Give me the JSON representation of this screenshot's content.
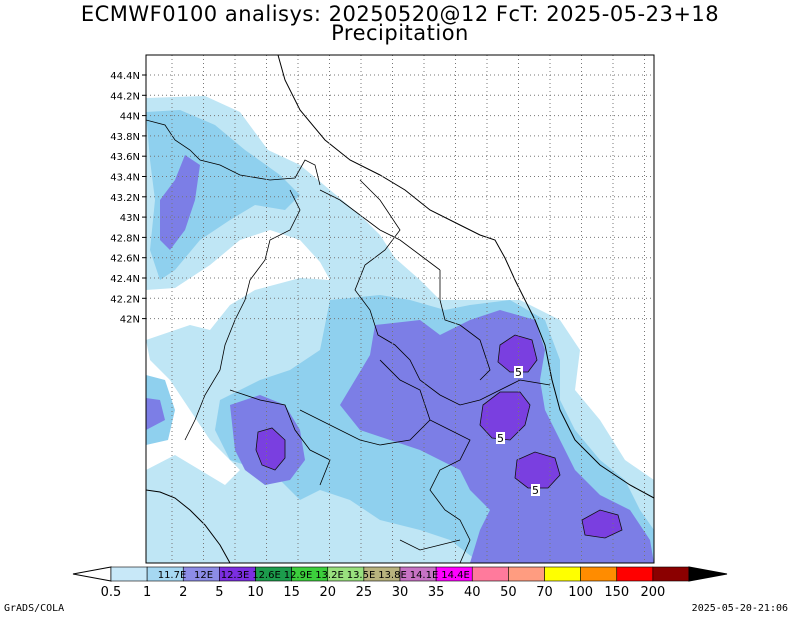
{
  "header": {
    "title_line1": "ECMWF0100 analisys: 20250520@12 FcT: 2025-05-23+18",
    "title_line2": "Precipitation"
  },
  "map": {
    "lat_labels": [
      "44.4N",
      "44.2N",
      "44N",
      "43.8N",
      "43.6N",
      "43.4N",
      "43.2N",
      "43N",
      "42.8N",
      "42.6N",
      "42.4N",
      "42.2N",
      "42N"
    ],
    "lon_grid_labels": [
      "11.7E",
      "12E",
      "12.3E",
      "12.6E",
      "12.9E",
      "13.2E",
      "13.5E",
      "13.8E",
      "14.1E",
      "14.4E"
    ],
    "contour_labels": [
      "5",
      "5",
      "5"
    ],
    "gridlines": true,
    "shading_colors": [
      "#bfe6f5",
      "#8fd0ee",
      "#7c7ee6",
      "#7a3fe0"
    ]
  },
  "colorbar": {
    "ticks": [
      "0.5",
      "1",
      "2",
      "5",
      "10",
      "15",
      "20",
      "25",
      "30",
      "35",
      "40",
      "50",
      "70",
      "100",
      "150",
      "200"
    ],
    "colors": [
      "#c8e8f8",
      "#a6d8f2",
      "#8d8ce6",
      "#7b2ee0",
      "#1c9c4c",
      "#3ccf3c",
      "#99e07e",
      "#b8b37e",
      "#c773c4",
      "#ff00ff",
      "#ff7a9c",
      "#ff9c80",
      "#ffff00",
      "#ff8c00",
      "#ff0000",
      "#8b0000"
    ]
  },
  "footer": {
    "left": "GrADS/COLA",
    "right": "2025-05-20-21:06"
  }
}
